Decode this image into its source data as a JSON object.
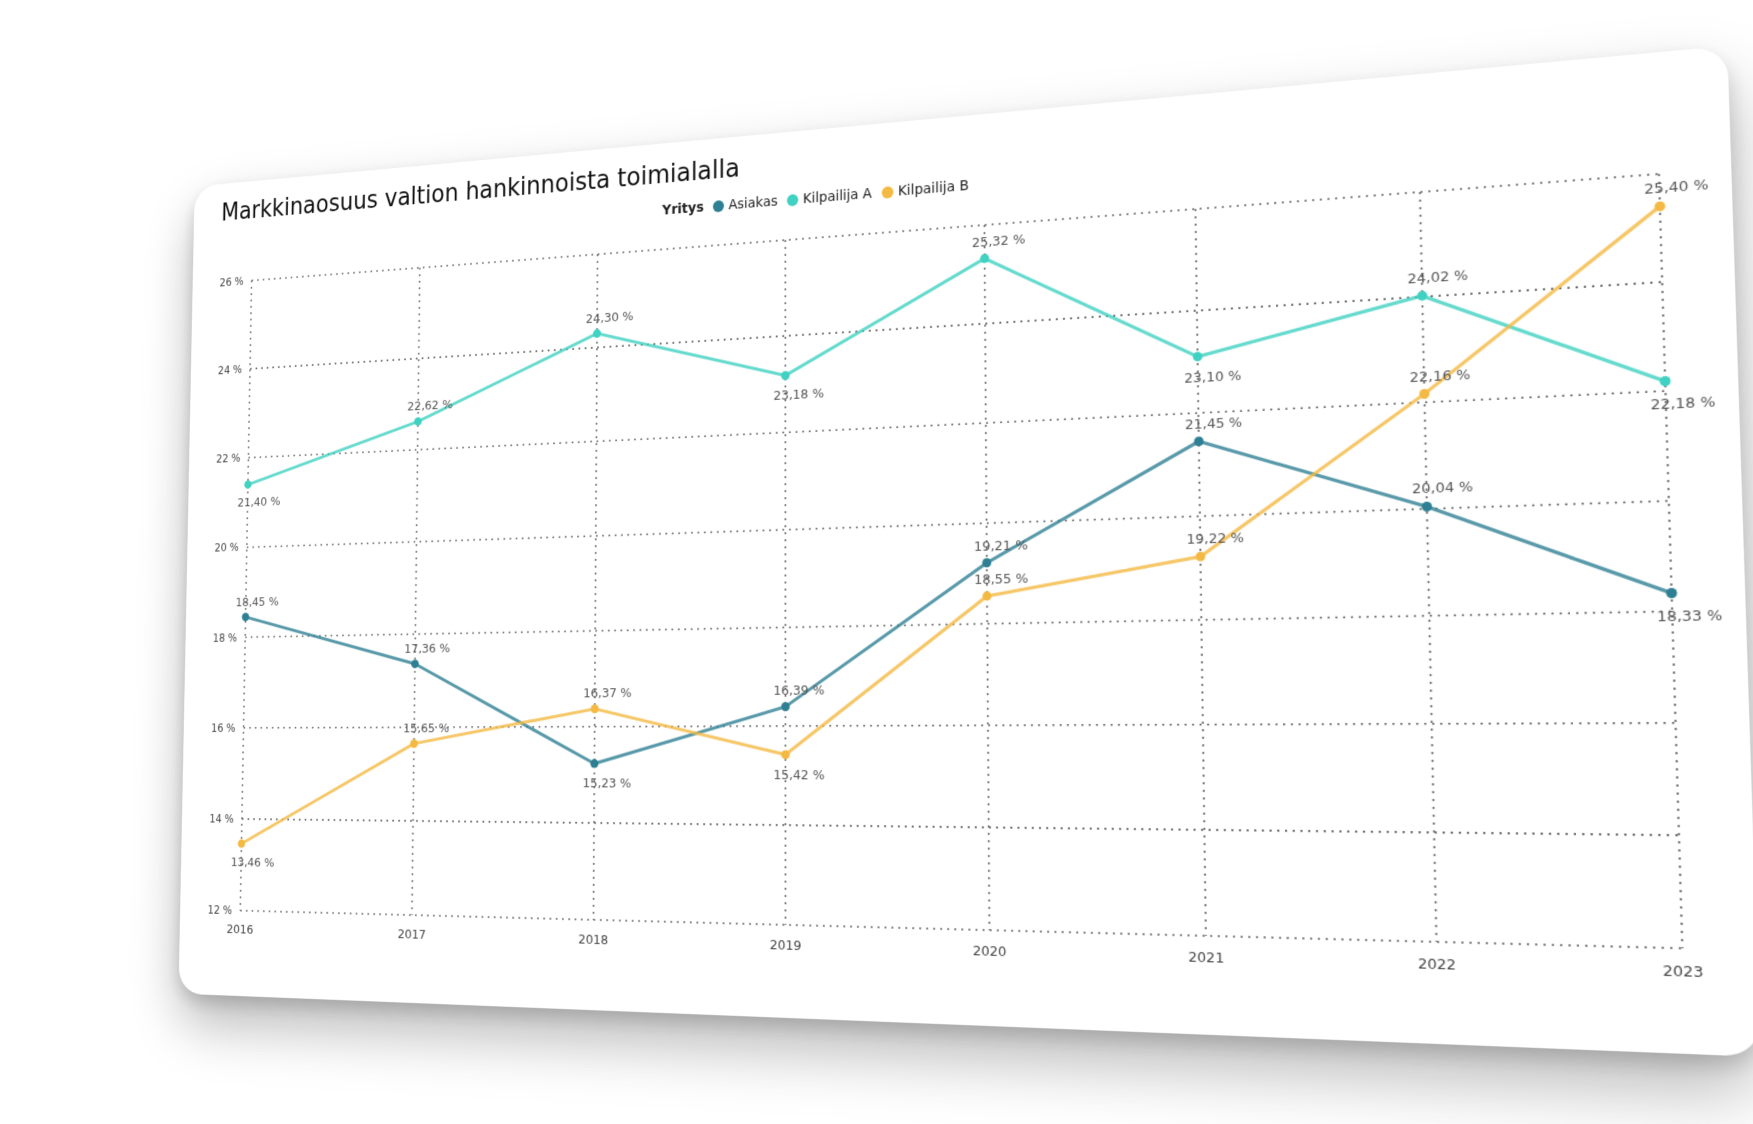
{
  "chart_data": {
    "type": "line",
    "title": "Markkinaosuus valtion hankinnoista toimialalla",
    "legend_title": "Yritys",
    "categories": [
      "2016",
      "2017",
      "2018",
      "2019",
      "2020",
      "2021",
      "2022",
      "2023"
    ],
    "ylim": [
      12,
      26
    ],
    "yticks": [
      "12 %",
      "14 %",
      "16 %",
      "18 %",
      "20 %",
      "22 %",
      "24 %",
      "26 %"
    ],
    "grid": true,
    "series": [
      {
        "name": "Asiakas",
        "color": "#2e7f94",
        "values": [
          18.45,
          17.36,
          15.23,
          16.39,
          19.21,
          21.45,
          20.04,
          18.33
        ],
        "labels": [
          "18,45 %",
          "17,36 %",
          "15,23 %",
          "16,39 %",
          "19,21 %",
          "21,45 %",
          "20,04 %",
          "18,33 %"
        ]
      },
      {
        "name": "Kilpailija A",
        "color": "#3fd1c1",
        "values": [
          21.4,
          22.62,
          24.3,
          23.18,
          25.32,
          23.1,
          24.02,
          22.18
        ],
        "labels": [
          "21,40 %",
          "22,62 %",
          "24,30 %",
          "23,18 %",
          "25,32 %",
          "23,10 %",
          "24,02 %",
          "22,18 %"
        ]
      },
      {
        "name": "Kilpailija B",
        "color": "#f4b942",
        "values": [
          13.46,
          15.65,
          16.37,
          15.42,
          18.55,
          19.22,
          22.16,
          25.4
        ],
        "labels": [
          "13,46 %",
          "15,65 %",
          "16,37 %",
          "15,42 %",
          "18,55 %",
          "19,22 %",
          "22,16 %",
          "25,40 %"
        ]
      }
    ]
  }
}
